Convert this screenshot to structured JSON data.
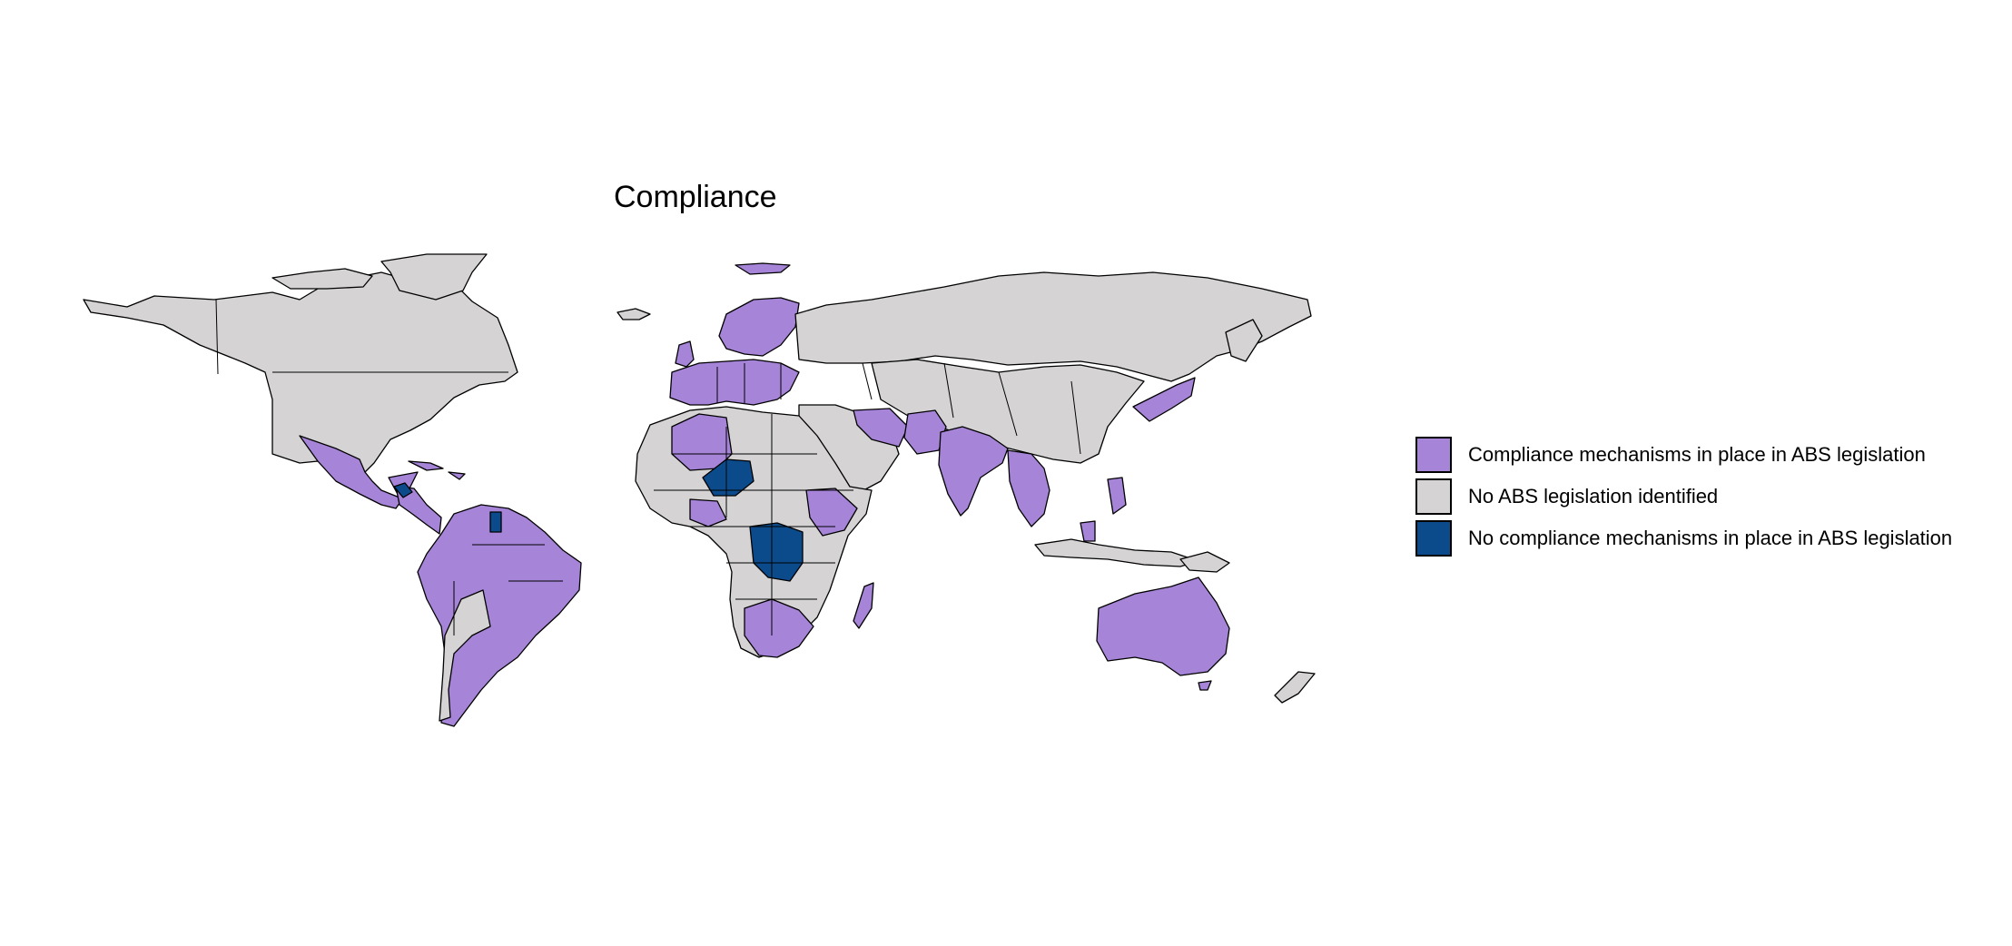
{
  "title": "Compliance",
  "colors": {
    "compliance": "#a684d7",
    "none": "#d5d3d4",
    "no_compliance": "#0b4b8c",
    "background": "#ffffff",
    "border": "#000000"
  },
  "legend": [
    {
      "label": "Compliance mechanisms in place in ABS legislation",
      "color": "#a684d7"
    },
    {
      "label": "No ABS legislation identified",
      "color": "#d5d3d4"
    },
    {
      "label": "No compliance mechanisms in place in ABS legislation",
      "color": "#0b4b8c"
    }
  ],
  "legend_position": "right"
}
